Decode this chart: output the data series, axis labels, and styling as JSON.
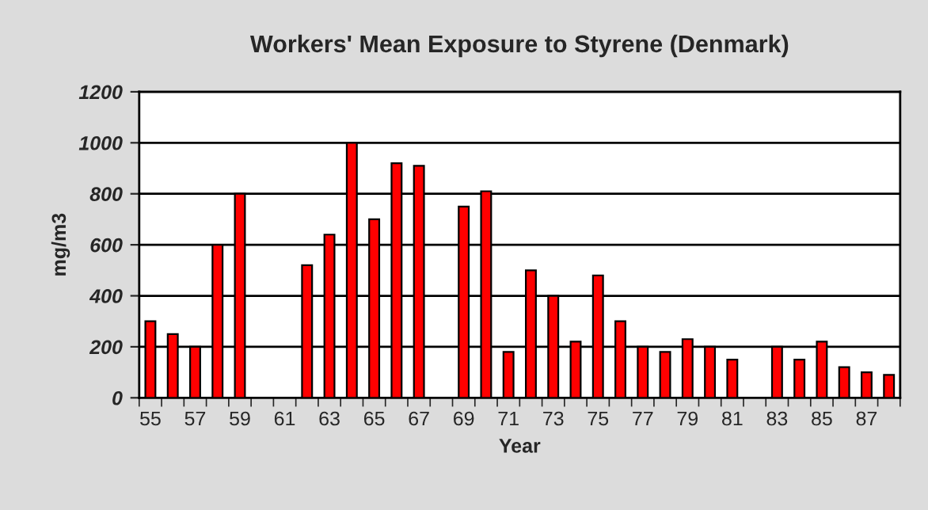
{
  "chart_data": {
    "type": "bar",
    "title": "Workers' Mean Exposure to Styrene (Denmark)",
    "xlabel": "Year",
    "ylabel": "mg/m3",
    "categories": [
      "55",
      null,
      "57",
      null,
      "59",
      null,
      "61",
      null,
      "63",
      null,
      "65",
      null,
      "67",
      null,
      "69",
      null,
      "71",
      null,
      "73",
      null,
      "75",
      null,
      "77",
      null,
      "79",
      null,
      "81",
      null,
      "83",
      null,
      "85",
      null,
      "87",
      null
    ],
    "values": [
      300,
      250,
      200,
      600,
      800,
      null,
      null,
      520,
      640,
      1000,
      700,
      920,
      910,
      null,
      750,
      810,
      180,
      500,
      400,
      220,
      480,
      300,
      200,
      180,
      230,
      200,
      150,
      null,
      200,
      150,
      220,
      120,
      100,
      90
    ],
    "color": "#ff0000",
    "ylim": [
      0,
      1200
    ],
    "yticks": [
      0,
      200,
      400,
      600,
      800,
      1000,
      1200
    ],
    "grid": "y",
    "legend": false
  }
}
